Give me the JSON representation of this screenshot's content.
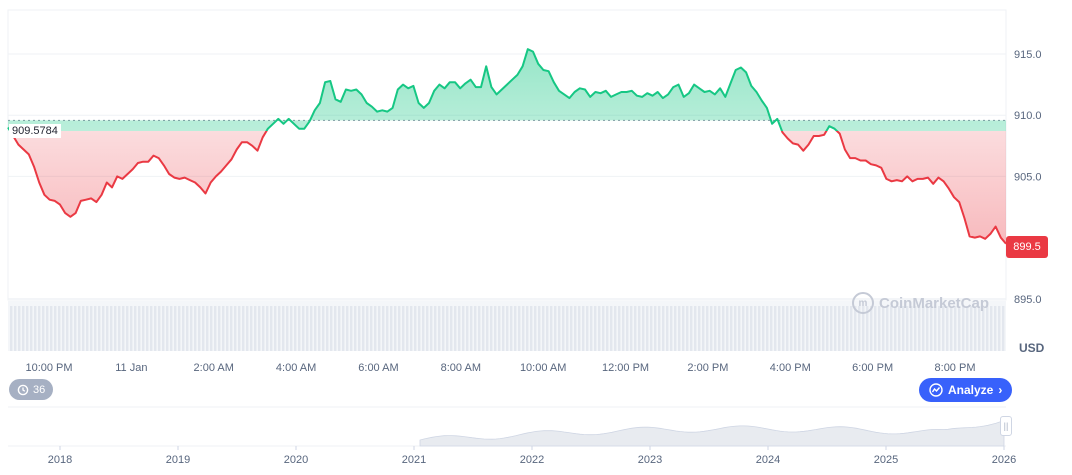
{
  "chart_data": {
    "type": "area",
    "baseline": 909.5784,
    "baseline_label": "909.5784",
    "current_price_label": "899.5",
    "currency": "USD",
    "y_ticks": [
      "915.0",
      "910.0",
      "905.0",
      "895.0"
    ],
    "ylim": [
      894.9,
      918.6
    ],
    "x_tick_labels": [
      "10:00 PM",
      "11 Jan",
      "2:00 AM",
      "4:00 AM",
      "6:00 AM",
      "8:00 AM",
      "10:00 AM",
      "12:00 PM",
      "2:00 PM",
      "4:00 PM",
      "6:00 PM",
      "8:00 PM"
    ],
    "series": [
      {
        "values": [
          909.0,
          908.3,
          907.6,
          907.2,
          906.8,
          905.8,
          904.5,
          903.5,
          903.1,
          903.0,
          902.7,
          902.0,
          901.7,
          902.0,
          903.0,
          903.1,
          903.2,
          902.9,
          903.5,
          904.5,
          904.1,
          905.0,
          904.8,
          905.2,
          905.6,
          906.1,
          906.2,
          906.2,
          906.7,
          906.5,
          905.9,
          905.2,
          904.9,
          904.8,
          904.9,
          904.7,
          904.5,
          904.1,
          903.6,
          904.5,
          905.0,
          905.4,
          905.9,
          906.4,
          907.2,
          907.8,
          907.8,
          907.5,
          907.1,
          908.2,
          908.9,
          909.3,
          909.7,
          909.3,
          909.7,
          909.3,
          908.9,
          908.9,
          909.5,
          910.4,
          911.0,
          912.7,
          912.8,
          911.3,
          911.1,
          912.1,
          912.0,
          912.1,
          911.7,
          911.0,
          910.7,
          910.3,
          910.4,
          910.3,
          910.6,
          912.1,
          912.5,
          912.2,
          912.4,
          911.0,
          910.6,
          911.0,
          912.0,
          912.5,
          912.2,
          912.7,
          912.7,
          912.2,
          912.6,
          912.9,
          912.3,
          912.3,
          914.0,
          912.3,
          911.7,
          912.1,
          912.5,
          912.9,
          913.3,
          914.0,
          915.4,
          915.2,
          914.2,
          913.7,
          913.6,
          912.7,
          912.0,
          911.7,
          911.4,
          911.9,
          912.2,
          912.1,
          911.5,
          911.9,
          911.8,
          912.0,
          911.5,
          911.7,
          911.9,
          911.9,
          912.0,
          911.6,
          911.5,
          911.8,
          911.6,
          911.9,
          911.4,
          911.7,
          912.3,
          912.5,
          911.5,
          911.8,
          912.5,
          912.2,
          911.9,
          912.0,
          911.7,
          912.2,
          911.5,
          912.6,
          913.7,
          913.9,
          913.5,
          912.4,
          911.9,
          911.2,
          910.6,
          909.3,
          909.7,
          908.6,
          908.1,
          907.7,
          907.6,
          907.1,
          907.6,
          908.3,
          908.3,
          908.4,
          909.1,
          908.9,
          908.5,
          907.2,
          906.5,
          906.5,
          906.3,
          906.3,
          906.0,
          905.9,
          905.7,
          904.8,
          904.6,
          904.7,
          904.6,
          905.0,
          904.6,
          904.8,
          904.8,
          904.9,
          904.4,
          904.9,
          904.6,
          904.0,
          903.3,
          902.9,
          901.6,
          900.1,
          900.0,
          900.1,
          899.9,
          900.3,
          900.9,
          900.0,
          899.5
        ]
      }
    ],
    "up_color": "#16c784",
    "down_color": "#ea3943",
    "nav_tick_labels": [
      "2018",
      "2019",
      "2020",
      "2021",
      "2022",
      "2023",
      "2024",
      "2025",
      "2026"
    ]
  },
  "ui": {
    "watermark": "CoinMarketCap",
    "history_count": "36",
    "analyze_label": "Analyze",
    "history_icon": "history-clock-icon",
    "analyze_icon": "analyze-chart-icon",
    "accent_color": "#3861fb"
  }
}
